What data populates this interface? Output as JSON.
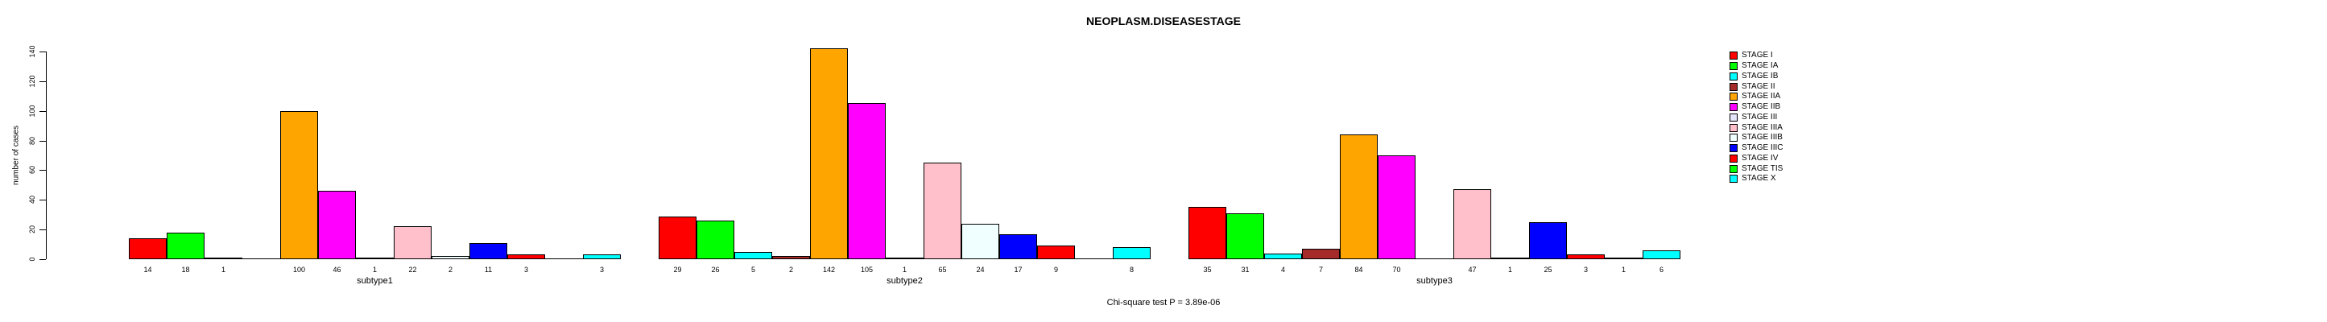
{
  "title": "NEOPLASM.DISEASESTAGE",
  "y_axis_label": "number of cases",
  "footnote": "Chi-square test P = 3.89e-06",
  "chart_data": {
    "type": "bar",
    "title": "NEOPLASM.DISEASESTAGE",
    "xlabel": "",
    "ylabel": "number of cases",
    "ylim": [
      0,
      140
    ],
    "yticks": [
      0,
      20,
      40,
      60,
      80,
      100,
      120,
      140
    ],
    "grid": false,
    "legend_position": "right",
    "bar_border_color": "#000000",
    "categories": [
      "subtype1",
      "subtype2",
      "subtype3"
    ],
    "series": [
      {
        "name": "STAGE I",
        "color": "#FF0000",
        "values": [
          14,
          29,
          35
        ]
      },
      {
        "name": "STAGE IA",
        "color": "#00FF00",
        "values": [
          18,
          26,
          31
        ]
      },
      {
        "name": "STAGE IB",
        "color": "#00FFFF",
        "values": [
          1,
          5,
          4
        ]
      },
      {
        "name": "STAGE II",
        "color": "#A52A2A",
        "values": [
          0,
          2,
          7
        ]
      },
      {
        "name": "STAGE IIA",
        "color": "#FFA500",
        "values": [
          100,
          142,
          84
        ]
      },
      {
        "name": "STAGE IIB",
        "color": "#FF00FF",
        "values": [
          46,
          105,
          70
        ]
      },
      {
        "name": "STAGE III",
        "color": "#E6E6FA",
        "values": [
          1,
          1,
          0
        ]
      },
      {
        "name": "STAGE IIIA",
        "color": "#FFC0CB",
        "values": [
          22,
          65,
          47
        ]
      },
      {
        "name": "STAGE IIIB",
        "color": "#F0FFFF",
        "values": [
          2,
          24,
          1
        ]
      },
      {
        "name": "STAGE IIIC",
        "color": "#0000FF",
        "values": [
          11,
          17,
          25
        ]
      },
      {
        "name": "STAGE IV",
        "color": "#FF0000",
        "values": [
          3,
          9,
          3
        ]
      },
      {
        "name": "STAGE TIS",
        "color": "#00FF00",
        "values": [
          0,
          0,
          1
        ]
      },
      {
        "name": "STAGE X",
        "color": "#00FFFF",
        "values": [
          3,
          8,
          6
        ]
      }
    ],
    "footnote": "Chi-square test P = 3.89e-06"
  }
}
